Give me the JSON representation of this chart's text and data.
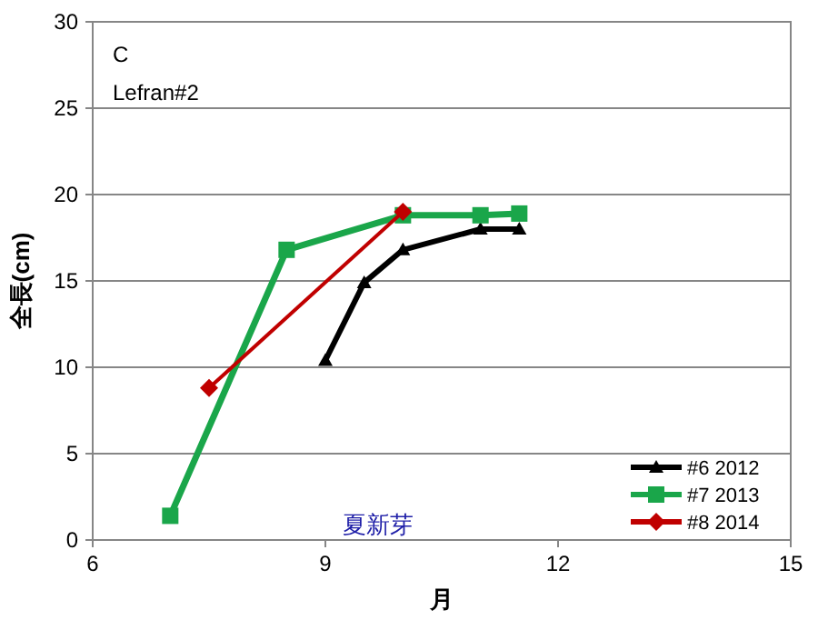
{
  "chart_data": {
    "type": "line",
    "xlabel": "月",
    "ylabel": "全長(cm)",
    "annotations": [
      "C",
      "Lefran#2",
      "夏新芽"
    ],
    "xlim": [
      6,
      15
    ],
    "xticks": [
      6,
      9,
      12,
      15
    ],
    "ylim": [
      0,
      30
    ],
    "yticks": [
      0,
      5,
      10,
      15,
      20,
      25,
      30
    ],
    "grid": "y",
    "legend": "bottom right",
    "line_style": "solid",
    "series": [
      {
        "name": "#6 2012",
        "color": "#000000",
        "marker": "triangle",
        "x": [
          9.0,
          9.5,
          10.0,
          11.0,
          11.5
        ],
        "values": [
          10.4,
          14.9,
          16.8,
          18.0,
          18.0
        ]
      },
      {
        "name": "#7 2013",
        "color": "#1aa64a",
        "marker": "square",
        "x": [
          7.0,
          8.5,
          10.0,
          11.0,
          11.5
        ],
        "values": [
          1.4,
          16.8,
          18.8,
          18.8,
          18.9
        ]
      },
      {
        "name": "#8 2014",
        "color": "#c00000",
        "marker": "diamond",
        "x": [
          7.5,
          10.0
        ],
        "values": [
          8.8,
          19.0
        ]
      }
    ]
  }
}
